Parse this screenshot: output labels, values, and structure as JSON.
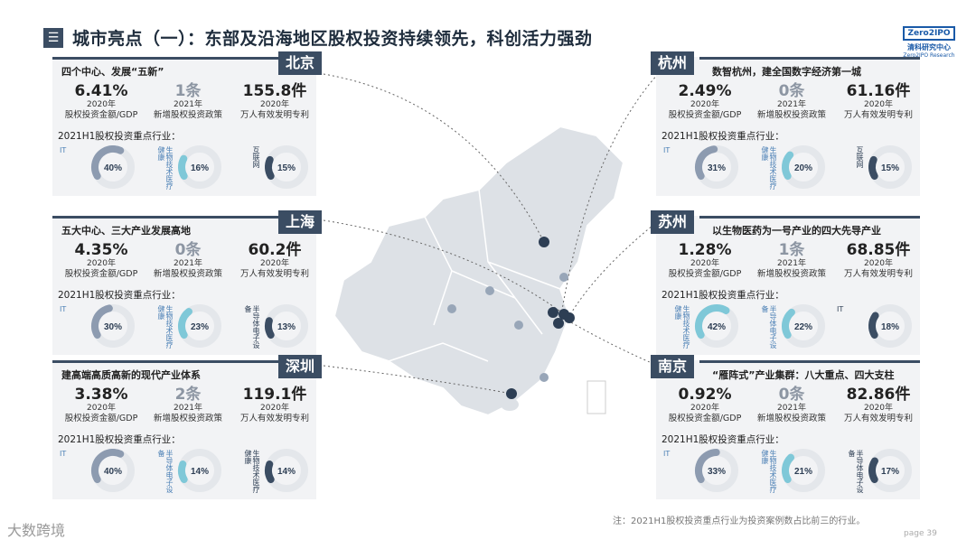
{
  "header": {
    "menu_glyph": "☰",
    "title": "城市亮点（一）：东部及沿海地区股权投资持续领先，科创活力强劲"
  },
  "logo": {
    "box": "Zero2IPO",
    "cn": "清科研究中心",
    "en": "Zero2IPO Research"
  },
  "industry_label": "2021H1股权投资重点行业：",
  "cards": [
    {
      "city": "北京",
      "subtitle": "四个中心、发展“五新”",
      "metrics": [
        {
          "value": "6.41%",
          "year": "2020年",
          "desc": "股权投资金额/GDP",
          "gray": false
        },
        {
          "value": "1条",
          "year": "2021年",
          "desc": "新增股权投资政策",
          "gray": true
        },
        {
          "value": "155.8件",
          "year": "2020年",
          "desc": "万人有效发明专利",
          "gray": false
        }
      ],
      "industries": [
        {
          "name": "IT",
          "pct": "40%",
          "frac": 0.4,
          "color": "#8d9bb0"
        },
        {
          "name": "生物技术",
          "name2": "医疗健康",
          "pct": "16%",
          "frac": 0.16,
          "color": "#7fc8d8"
        },
        {
          "name": "互联网",
          "pct": "15%",
          "frac": 0.15,
          "color": "#3b4d63"
        }
      ]
    },
    {
      "city": "上海",
      "subtitle": "五大中心、三大产业发展高地",
      "metrics": [
        {
          "value": "4.35%",
          "year": "2020年",
          "desc": "股权投资金额/GDP",
          "gray": false
        },
        {
          "value": "0条",
          "year": "2021年",
          "desc": "新增股权投资政策",
          "gray": true
        },
        {
          "value": "60.2件",
          "year": "2020年",
          "desc": "万人有效发明专利",
          "gray": false
        }
      ],
      "industries": [
        {
          "name": "IT",
          "pct": "30%",
          "frac": 0.3,
          "color": "#8d9bb0"
        },
        {
          "name": "生物技术",
          "name2": "医疗健康",
          "pct": "23%",
          "frac": 0.23,
          "color": "#7fc8d8"
        },
        {
          "name": "半导体",
          "name2": "电子设备",
          "pct": "13%",
          "frac": 0.13,
          "color": "#3b4d63"
        }
      ]
    },
    {
      "city": "深圳",
      "subtitle": "建高端高质高新的现代产业体系",
      "metrics": [
        {
          "value": "3.38%",
          "year": "2020年",
          "desc": "股权投资金额/GDP",
          "gray": false
        },
        {
          "value": "2条",
          "year": "2021年",
          "desc": "新增股权投资政策",
          "gray": true
        },
        {
          "value": "119.1件",
          "year": "2020年",
          "desc": "万人有效发明专利",
          "gray": false
        }
      ],
      "industries": [
        {
          "name": "IT",
          "pct": "40%",
          "frac": 0.4,
          "color": "#8d9bb0"
        },
        {
          "name": "半导体",
          "name2": "电子设备",
          "pct": "14%",
          "frac": 0.14,
          "color": "#7fc8d8"
        },
        {
          "name": "生物技术",
          "name2": "医疗健康",
          "pct": "14%",
          "frac": 0.14,
          "color": "#3b4d63"
        }
      ]
    },
    {
      "city": "杭州",
      "subtitle": "数智杭州，建全国数字经济第一城",
      "metrics": [
        {
          "value": "2.49%",
          "year": "2020年",
          "desc": "股权投资金额/GDP",
          "gray": false
        },
        {
          "value": "0条",
          "year": "2021年",
          "desc": "新增股权投资政策",
          "gray": true
        },
        {
          "value": "61.16件",
          "year": "2020年",
          "desc": "万人有效发明专利",
          "gray": false
        }
      ],
      "industries": [
        {
          "name": "IT",
          "pct": "31%",
          "frac": 0.31,
          "color": "#8d9bb0"
        },
        {
          "name": "生物技术",
          "name2": "医疗健康",
          "pct": "20%",
          "frac": 0.2,
          "color": "#7fc8d8"
        },
        {
          "name": "互联网",
          "pct": "15%",
          "frac": 0.15,
          "color": "#3b4d63"
        }
      ]
    },
    {
      "city": "苏州",
      "subtitle": "以生物医药为一号产业的四大先导产业",
      "metrics": [
        {
          "value": "1.28%",
          "year": "2020年",
          "desc": "股权投资金额/GDP",
          "gray": false
        },
        {
          "value": "1条",
          "year": "2021年",
          "desc": "新增股权投资政策",
          "gray": true
        },
        {
          "value": "68.85件",
          "year": "2020年",
          "desc": "万人有效发明专利",
          "gray": false
        }
      ],
      "industries": [
        {
          "name": "生物技术",
          "name2": "医疗健康",
          "pct": "42%",
          "frac": 0.42,
          "color": "#7fc8d8"
        },
        {
          "name": "半导体",
          "name2": "电子设备",
          "pct": "22%",
          "frac": 0.22,
          "color": "#7fc8d8"
        },
        {
          "name": "IT",
          "pct": "18%",
          "frac": 0.18,
          "color": "#3b4d63"
        }
      ]
    },
    {
      "city": "南京",
      "subtitle": "“雁阵式”产业集群：八大重点、四大支柱",
      "metrics": [
        {
          "value": "0.92%",
          "year": "2020年",
          "desc": "股权投资金额/GDP",
          "gray": false
        },
        {
          "value": "0条",
          "year": "2021年",
          "desc": "新增股权投资政策",
          "gray": true
        },
        {
          "value": "82.86件",
          "year": "2020年",
          "desc": "万人有效发明专利",
          "gray": false
        }
      ],
      "industries": [
        {
          "name": "IT",
          "pct": "33%",
          "frac": 0.33,
          "color": "#8d9bb0"
        },
        {
          "name": "生物技术",
          "name2": "医疗健康",
          "pct": "21%",
          "frac": 0.21,
          "color": "#7fc8d8"
        },
        {
          "name": "半导体",
          "name2": "电子设备",
          "pct": "17%",
          "frac": 0.17,
          "color": "#3b4d63"
        }
      ]
    }
  ],
  "footnote": "注：2021H1股权投资重点行业为投资案例数占比前三的行业。",
  "page_label": "page 39",
  "brand": "大数跨境"
}
